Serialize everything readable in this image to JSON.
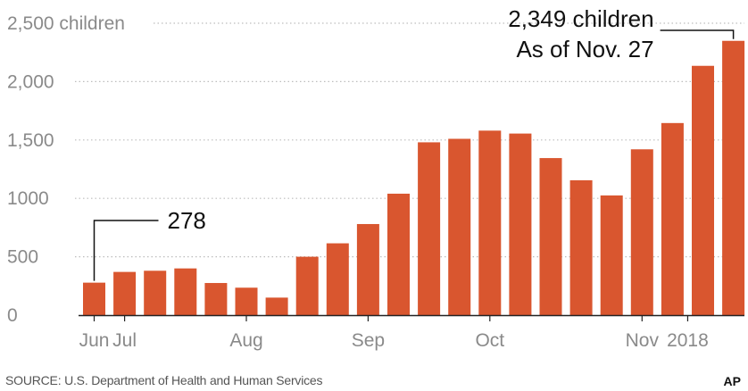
{
  "colors": {
    "bar": "#d9562f",
    "grid": "#bdbdbd",
    "axis": "#222222",
    "tick_text": "#8a8a8a",
    "annotation_text": "#111111"
  },
  "source": "SOURCE: U.S. Department of Health and Human Services",
  "credit": "AP",
  "chart_data": {
    "type": "bar",
    "title": "",
    "xlabel": "",
    "ylabel": "",
    "ylim": [
      0,
      2500
    ],
    "grid": true,
    "y_ticks": [
      {
        "value": 2500,
        "label": "2,500 children"
      },
      {
        "value": 2000,
        "label": "2,000"
      },
      {
        "value": 1500,
        "label": "1,500"
      },
      {
        "value": 1000,
        "label": "1000"
      },
      {
        "value": 500,
        "label": "500"
      },
      {
        "value": 0,
        "label": "0"
      }
    ],
    "x_labels": [
      {
        "bar_index": 0,
        "label": "Jun"
      },
      {
        "bar_index": 1,
        "label": "Jul"
      },
      {
        "bar_index": 5,
        "label": "Aug"
      },
      {
        "bar_index": 9,
        "label": "Sep"
      },
      {
        "bar_index": 13,
        "label": "Oct"
      },
      {
        "bar_index": 18,
        "label": "Nov"
      },
      {
        "bar_index": 19.5,
        "label": "2018"
      }
    ],
    "values": [
      278,
      370,
      380,
      400,
      275,
      235,
      150,
      500,
      615,
      780,
      1040,
      1480,
      1510,
      1580,
      1555,
      1345,
      1155,
      1025,
      1420,
      1645,
      2135,
      2349
    ],
    "annotations": [
      {
        "bar_index": 0,
        "lines": [
          "278"
        ]
      },
      {
        "bar_index": 21,
        "lines": [
          "2,349 children",
          "As of Nov. 27"
        ]
      }
    ]
  }
}
